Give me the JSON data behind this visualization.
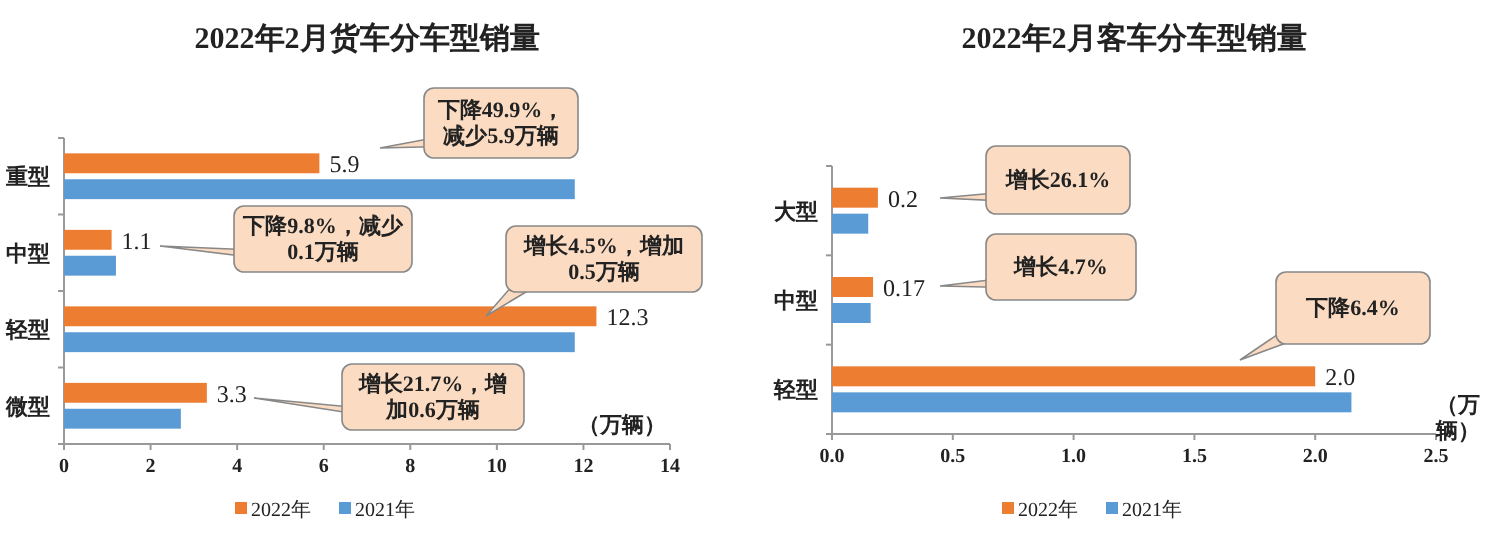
{
  "chart_data": [
    {
      "type": "bar",
      "orientation": "horizontal",
      "title": "2022年2月货车分车型销量",
      "xlabel": "（万辆）",
      "categories": [
        "重型",
        "中型",
        "轻型",
        "微型"
      ],
      "series": [
        {
          "name": "2022年",
          "color": "#ed7d31",
          "values": [
            5.9,
            1.1,
            12.3,
            3.3
          ],
          "value_labels": [
            "5.9",
            "1.1",
            "12.3",
            "3.3"
          ]
        },
        {
          "name": "2021年",
          "color": "#5b9bd5",
          "values": [
            11.8,
            1.2,
            11.8,
            2.7
          ]
        }
      ],
      "xlim": [
        0,
        14
      ],
      "xticks": [
        0,
        2,
        4,
        6,
        8,
        10,
        12,
        14
      ],
      "legend": "bottom",
      "annotations": [
        "下降49.9%，减少5.9万辆",
        "下降9.8%，减少0.1万辆",
        "增长4.5%，增加0.5万辆",
        "增长21.7%，增加0.6万辆"
      ]
    },
    {
      "type": "bar",
      "orientation": "horizontal",
      "title": "2022年2月客车分车型销量",
      "xlabel": "（万辆）",
      "categories": [
        "大型",
        "中型",
        "轻型"
      ],
      "series": [
        {
          "name": "2022年",
          "color": "#ed7d31",
          "values": [
            0.19,
            0.17,
            2.0
          ],
          "value_labels": [
            "0.2",
            "0.17",
            "2.0"
          ]
        },
        {
          "name": "2021年",
          "color": "#5b9bd5",
          "values": [
            0.15,
            0.16,
            2.15
          ]
        }
      ],
      "xlim": [
        0,
        2.5
      ],
      "xticks": [
        {
          "value": 0,
          "label": "0.0"
        },
        0.5,
        {
          "value": 1,
          "label": "1.0"
        },
        1.5,
        {
          "value": 2,
          "label": "2.0"
        },
        2.5
      ],
      "legend": "bottom",
      "annotations": [
        "增长26.1%",
        "增长4.7%",
        "下降6.4%"
      ]
    }
  ]
}
